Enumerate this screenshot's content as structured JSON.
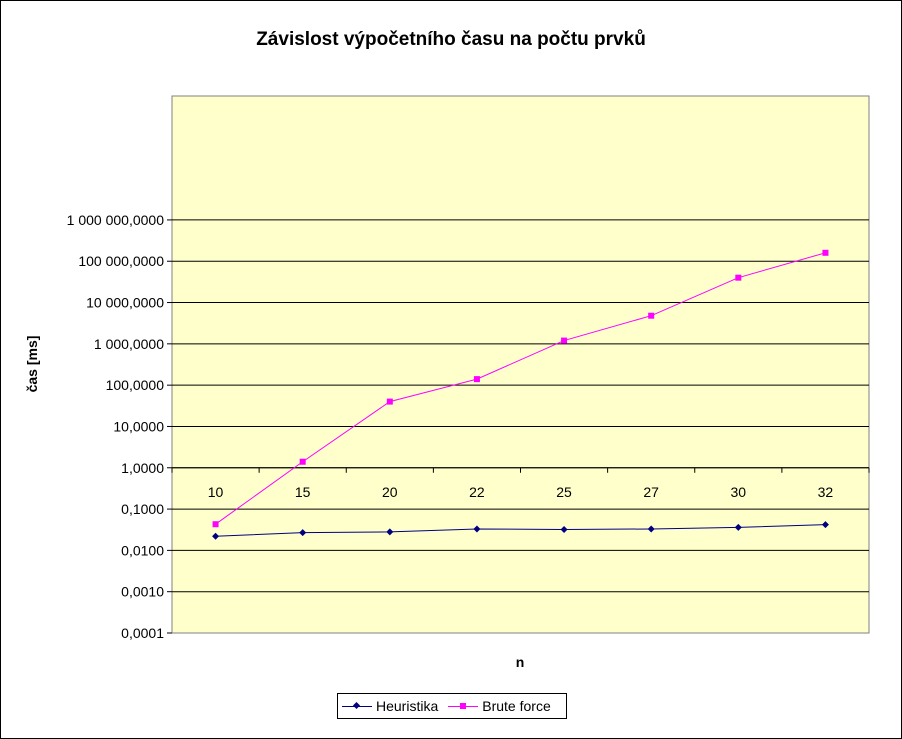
{
  "chart_data": {
    "type": "line",
    "title": "Závislost výpočetního času na počtu prvků",
    "xlabel": "n",
    "ylabel": "čas [ms]",
    "yscale": "log",
    "ylim": [
      0.0001,
      1000000000
    ],
    "y_tick_labels": [
      "1 000 000,0000",
      "100 000,0000",
      "10 000,0000",
      "1 000,0000",
      "100,0000",
      "10,0000",
      "1,0000",
      "0,1000",
      "0,0100",
      "0,0010",
      "0,0001"
    ],
    "y_tick_values": [
      1000000000,
      100000000,
      10000000,
      1000000,
      100000,
      10000,
      1000,
      100,
      10,
      1,
      0.1
    ],
    "y_tick_labels_display": [
      "1 000 000,0000",
      "100 000,0000",
      "10 000,0000",
      "1 000,0000",
      "100,0000",
      "10,0000",
      "1,0000",
      "0,1000",
      "0,0100",
      "0,0010",
      "0,0001"
    ],
    "categories": [
      "10",
      "15",
      "20",
      "22",
      "25",
      "27",
      "30",
      "32"
    ],
    "grid": true,
    "legend_position": "bottom",
    "background_color": "#ffffcc",
    "series": [
      {
        "name": "Heuristika",
        "color": "#000080",
        "marker": "diamond",
        "values": [
          0.022,
          0.027,
          0.028,
          0.033,
          0.032,
          0.033,
          0.036,
          0.042
        ]
      },
      {
        "name": "Brute force",
        "color": "#ff00ff",
        "marker": "square",
        "values": [
          0.043,
          1.4,
          40,
          140,
          1200,
          4800,
          40000,
          160000
        ]
      }
    ]
  }
}
